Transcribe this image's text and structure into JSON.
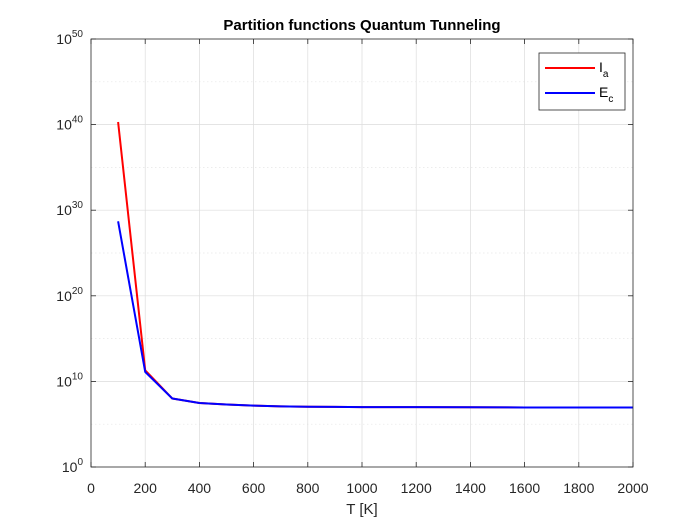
{
  "chart_data": {
    "type": "line",
    "title": "Partition functions Quantum Tunneling",
    "xlabel": "T [K]",
    "ylabel": "",
    "xlim": [
      0,
      2000
    ],
    "ylim_exponent": [
      0,
      50
    ],
    "yscale": "log",
    "x_ticks": [
      0,
      200,
      400,
      600,
      800,
      1000,
      1200,
      1400,
      1600,
      1800,
      2000
    ],
    "y_ticks": [
      {
        "base": "10",
        "exp": "0",
        "value": 1
      },
      {
        "base": "10",
        "exp": "10",
        "value": 10000000000.0
      },
      {
        "base": "10",
        "exp": "20",
        "value": 1e+20
      },
      {
        "base": "10",
        "exp": "30",
        "value": 1e+30
      },
      {
        "base": "10",
        "exp": "40",
        "value": 1e+40
      },
      {
        "base": "10",
        "exp": "50",
        "value": 1e+50
      }
    ],
    "grid": true,
    "minor_grid": true,
    "legend_position": "top-right",
    "series": [
      {
        "name": "I",
        "name_sub": "a",
        "color": "#ff0000",
        "x": [
          100,
          200,
          300,
          400,
          500,
          600,
          700,
          800,
          900,
          1000,
          1200,
          1400,
          1600,
          1800,
          2000
        ],
        "y": [
          2e+40,
          200000000000.0,
          100000000.0,
          30000000.0,
          20000000.0,
          15000000.0,
          12000000.0,
          11000000.0,
          10500000.0,
          10000000.0,
          10000000.0,
          9500000.0,
          9000000.0,
          9000000.0,
          9000000.0
        ]
      },
      {
        "name": "E",
        "name_sub": "c",
        "color": "#0000ff",
        "x": [
          100,
          200,
          300,
          400,
          500,
          600,
          700,
          800,
          900,
          1000,
          1200,
          1400,
          1600,
          1800,
          2000
        ],
        "y": [
          5e+28,
          130000000000.0,
          100000000.0,
          30000000.0,
          20000000.0,
          15000000.0,
          12000000.0,
          11000000.0,
          10500000.0,
          10000000.0,
          10000000.0,
          9500000.0,
          9000000.0,
          9000000.0,
          9000000.0
        ]
      }
    ]
  }
}
